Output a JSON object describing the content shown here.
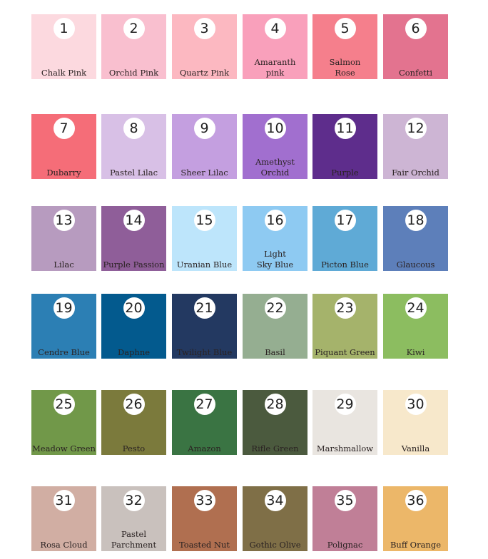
{
  "swatches": [
    {
      "number": "1",
      "name": "Chalk Pink",
      "color": "#fcd9df"
    },
    {
      "number": "2",
      "name": "Orchid Pink",
      "color": "#f9bfcf"
    },
    {
      "number": "3",
      "name": "Quartz Pink",
      "color": "#fcb8c1"
    },
    {
      "number": "4",
      "name": "Amaranth\npink",
      "color": "#f9a0bb"
    },
    {
      "number": "5",
      "name": "Salmon\nRose",
      "color": "#f57f8c"
    },
    {
      "number": "6",
      "name": "Confetti",
      "color": "#e3738f"
    },
    {
      "number": "7",
      "name": "Dubarry",
      "color": "#f56d78"
    },
    {
      "number": "8",
      "name": "Pastel Lilac",
      "color": "#d8c0e6"
    },
    {
      "number": "9",
      "name": "Sheer Lilac",
      "color": "#c49fe0"
    },
    {
      "number": "10",
      "name": "Amethyst\nOrchid",
      "color": "#a16fcf"
    },
    {
      "number": "11",
      "name": "Purple",
      "color": "#5e2d8c"
    },
    {
      "number": "12",
      "name": "Fair Orchid",
      "color": "#cdb5d4"
    },
    {
      "number": "13",
      "name": "Lilac",
      "color": "#b79bbf"
    },
    {
      "number": "14",
      "name": "Purple Passion",
      "color": "#8f5e99"
    },
    {
      "number": "15",
      "name": "Uranian Blue",
      "color": "#bde5fb"
    },
    {
      "number": "16",
      "name": "Light\nSky Blue",
      "color": "#8ecaf2"
    },
    {
      "number": "17",
      "name": "Picton Blue",
      "color": "#5faad6"
    },
    {
      "number": "18",
      "name": "Glaucous",
      "color": "#5d7fba"
    },
    {
      "number": "19",
      "name": "Cendre Blue",
      "color": "#2c7fb4"
    },
    {
      "number": "20",
      "name": "Daphne",
      "color": "#035a8e"
    },
    {
      "number": "21",
      "name": "Twilight Blue",
      "color": "#233961"
    },
    {
      "number": "22",
      "name": "Basil",
      "color": "#95ae91"
    },
    {
      "number": "23",
      "name": "Piquant Green",
      "color": "#a5b36b"
    },
    {
      "number": "24",
      "name": "Kiwi",
      "color": "#8cbd60"
    },
    {
      "number": "25",
      "name": "Meadow Green",
      "color": "#719849"
    },
    {
      "number": "26",
      "name": "Pesto",
      "color": "#7b7a3c"
    },
    {
      "number": "27",
      "name": "Amazon",
      "color": "#3a7443"
    },
    {
      "number": "28",
      "name": "Rifle Green",
      "color": "#4b5a3e"
    },
    {
      "number": "29",
      "name": "Marshmallow",
      "color": "#e9e5e0"
    },
    {
      "number": "30",
      "name": "Vanilla",
      "color": "#f7e8cb"
    },
    {
      "number": "31",
      "name": "Rosa Cloud",
      "color": "#d1aea3"
    },
    {
      "number": "32",
      "name": "Pastel\nParchment",
      "color": "#c9c1bd"
    },
    {
      "number": "33",
      "name": "Toasted Nut",
      "color": "#b06f50"
    },
    {
      "number": "34",
      "name": "Gothic Olive",
      "color": "#7f6f47"
    },
    {
      "number": "35",
      "name": "Polignac",
      "color": "#c07f97"
    },
    {
      "number": "36",
      "name": "Buff Orange",
      "color": "#ecb769"
    }
  ]
}
